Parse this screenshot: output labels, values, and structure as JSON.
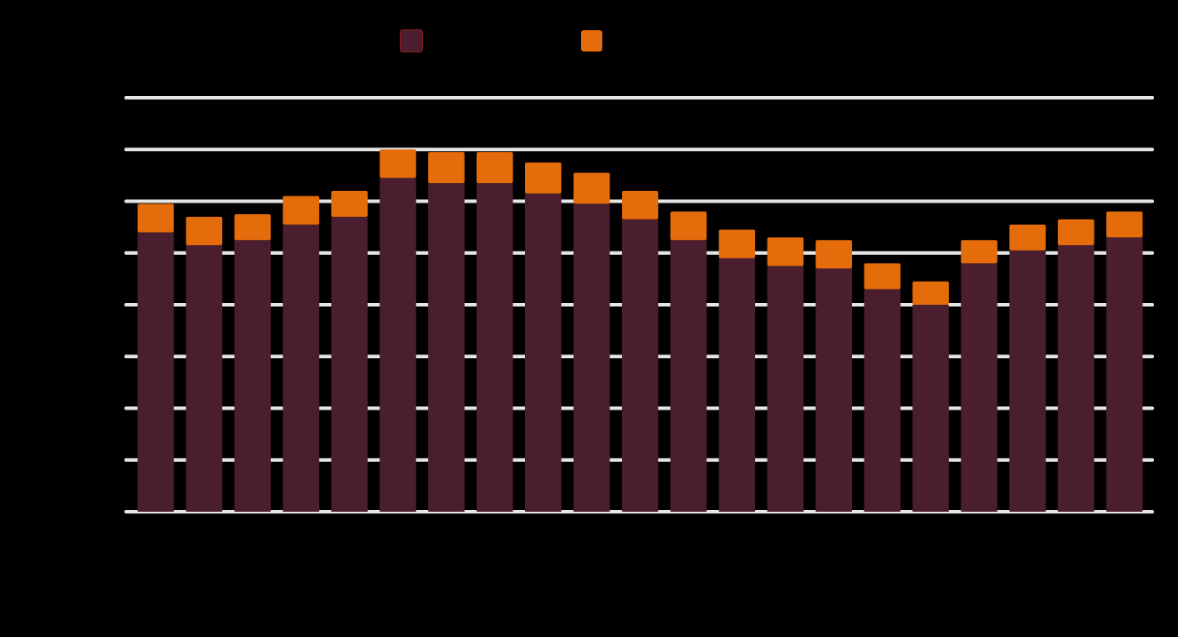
{
  "chart_data": {
    "type": "bar",
    "stacked": true,
    "categories": [
      "",
      "",
      "",
      "",
      "",
      "",
      "",
      "",
      "",
      "",
      "",
      "",
      "",
      "",
      "",
      "",
      "",
      "",
      "",
      "",
      ""
    ],
    "series": [
      {
        "name": "",
        "color": "#4a1e2f",
        "values": [
          5.4,
          5.15,
          5.25,
          5.55,
          5.7,
          6.45,
          6.35,
          6.35,
          6.15,
          5.95,
          5.65,
          5.25,
          4.9,
          4.75,
          4.7,
          4.3,
          4.0,
          4.8,
          5.05,
          5.15,
          5.3
        ]
      },
      {
        "name": "",
        "color": "#e46c0a",
        "values": [
          0.55,
          0.55,
          0.5,
          0.55,
          0.5,
          0.55,
          0.6,
          0.6,
          0.6,
          0.6,
          0.55,
          0.55,
          0.55,
          0.55,
          0.55,
          0.5,
          0.45,
          0.45,
          0.5,
          0.5,
          0.5
        ]
      }
    ],
    "ylim": [
      0,
      8
    ],
    "grid": true,
    "legend_position": "top"
  }
}
